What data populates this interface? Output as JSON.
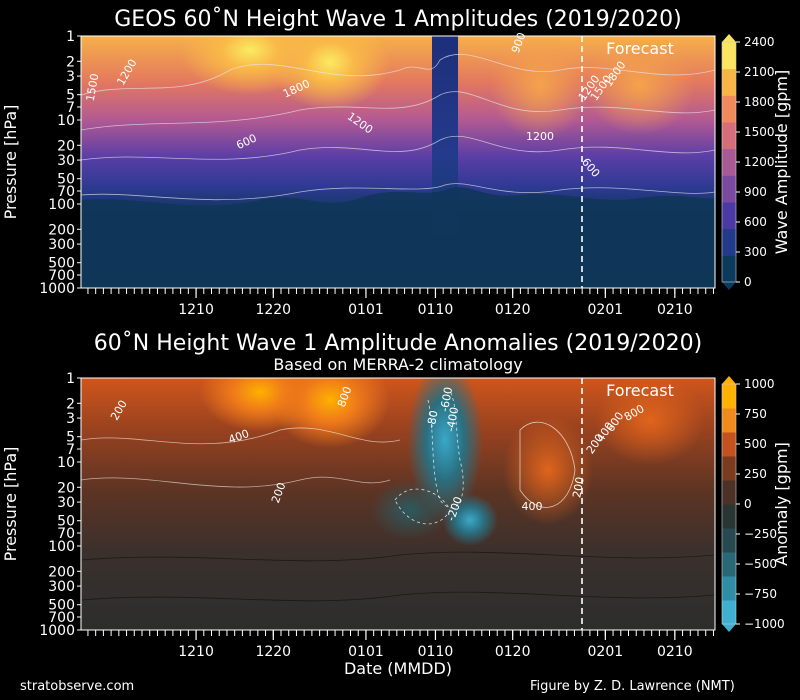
{
  "chart_data": [
    {
      "type": "heatmap",
      "title": "GEOS 60˚N Height Wave 1 Amplitudes (2019/2020)",
      "subtitle": "",
      "ylabel": "Pressure [hPa]",
      "xlabel": "",
      "yscale": "log",
      "ylim": [
        1000,
        1
      ],
      "yticks": [
        1,
        2,
        3,
        5,
        7,
        10,
        20,
        30,
        50,
        70,
        100,
        200,
        300,
        500,
        700,
        1000
      ],
      "xticks": [
        "1210",
        "1220",
        "0101",
        "0110",
        "0120",
        "0201",
        "0210"
      ],
      "forecast_label": "Forecast",
      "forecast_start": "0201",
      "colorbar": {
        "label": "Wave Amplitude [gpm]",
        "range": [
          0,
          2400
        ],
        "ticks": [
          0,
          300,
          600,
          900,
          1200,
          1500,
          1800,
          2100,
          2400
        ],
        "colors": [
          "#0b3a5c",
          "#223a8a",
          "#4b3aa3",
          "#7a4aa0",
          "#a85a95",
          "#d66e7a",
          "#f08a5c",
          "#f8b445",
          "#fae460"
        ]
      },
      "contour_labels": [
        "1500",
        "1200",
        "1800",
        "1200",
        "600",
        "1200",
        "1200",
        "600",
        "1800",
        "1500",
        "900"
      ]
    },
    {
      "type": "heatmap",
      "title": "60˚N Height Wave 1 Amplitude Anomalies (2019/2020)",
      "subtitle": "Based on MERRA-2 climatology",
      "ylabel": "Pressure [hPa]",
      "xlabel": "Date (MMDD)",
      "yscale": "log",
      "ylim": [
        1000,
        1
      ],
      "yticks": [
        1,
        2,
        3,
        5,
        7,
        10,
        20,
        30,
        50,
        70,
        100,
        200,
        300,
        500,
        700,
        1000
      ],
      "xticks": [
        "1210",
        "1220",
        "0101",
        "0110",
        "0120",
        "0201",
        "0210"
      ],
      "forecast_label": "Forecast",
      "forecast_start": "0201",
      "colorbar": {
        "label": "Anomaly [gpm]",
        "range": [
          -1000,
          1000
        ],
        "ticks": [
          -1000,
          -750,
          -500,
          -250,
          0,
          250,
          500,
          750,
          1000
        ],
        "colors": [
          "#3fb0d0",
          "#2f8ea5",
          "#2a6876",
          "#274a50",
          "#2a3634",
          "#4a3226",
          "#7a3b1f",
          "#c4521f",
          "#f08a1d",
          "#ffb000"
        ]
      },
      "contour_labels": [
        "200",
        "400",
        "200",
        "800",
        "-80",
        "-400",
        "-600",
        "-200",
        "400",
        "200",
        "200",
        "400",
        "600",
        "800"
      ]
    }
  ],
  "footer": {
    "left": "stratobserve.com",
    "right": "Figure by Z. D. Lawrence (NMT)"
  }
}
